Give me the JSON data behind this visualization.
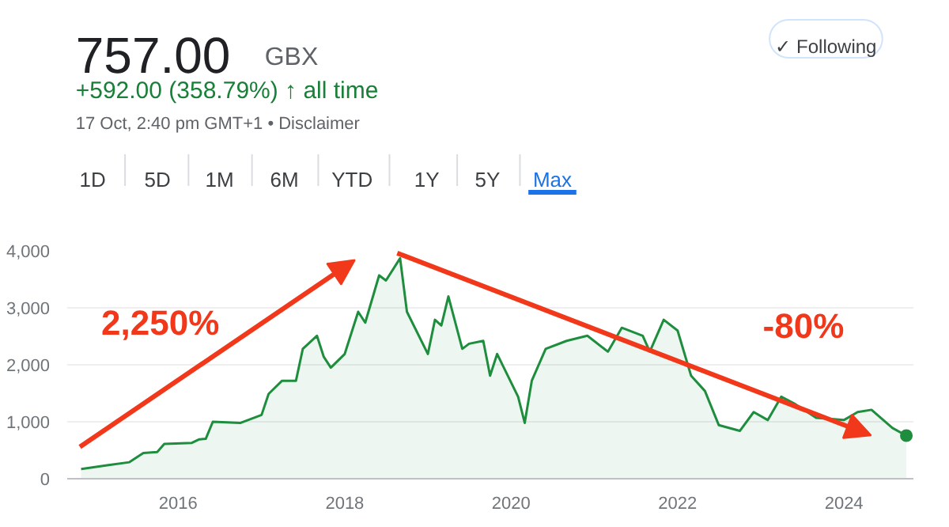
{
  "chart_data": {
    "type": "area",
    "title": "757.00",
    "subtitle": "+592.00 (358.79%) ↑ all time",
    "annotations": [
      "GBX",
      "17 Oct, 2:40 pm GMT+1 • Disclaimer",
      "1D",
      "5D",
      "1M",
      "6M",
      "YTD",
      "1Y",
      "5Y",
      "Max",
      "✓ Following",
      "2,250%",
      "-80%"
    ],
    "xlim": [
      "2014-09",
      "2024-11"
    ],
    "ylim": [
      0,
      4000
    ],
    "xticks": [
      {
        "value": "2016-01",
        "label": "2016"
      },
      {
        "value": "2018-01",
        "label": "2018"
      },
      {
        "value": "2020-01",
        "label": "2020"
      },
      {
        "value": "2022-01",
        "label": "2022"
      },
      {
        "value": "2024-01",
        "label": "2024"
      }
    ],
    "yticks": [
      {
        "value": 0,
        "label": "0"
      },
      {
        "value": 1000,
        "label": "1,000"
      },
      {
        "value": 2000,
        "label": "2,000"
      },
      {
        "value": 3000,
        "label": "3,000"
      },
      {
        "value": 4000,
        "label": "4,000"
      }
    ],
    "grid": "y",
    "series": [
      {
        "color": "#1e8e3e",
        "x": [
          "2014-11",
          "2015-03",
          "2015-06",
          "2015-08",
          "2015-10",
          "2015-11",
          "2016-03",
          "2016-04",
          "2016-05",
          "2016-06",
          "2016-10",
          "2017-01",
          "2017-02",
          "2017-04",
          "2017-06",
          "2017-07",
          "2017-09",
          "2017-10",
          "2017-11",
          "2018-01",
          "2018-03",
          "2018-04",
          "2018-06",
          "2018-07",
          "2018-09",
          "2018-10",
          "2019-01",
          "2019-02",
          "2019-03",
          "2019-04",
          "2019-06",
          "2019-07",
          "2019-09",
          "2019-10",
          "2019-11",
          "2020-02",
          "2020-03",
          "2020-04",
          "2020-06",
          "2020-09",
          "2020-12",
          "2021-03",
          "2021-05",
          "2021-08",
          "2021-09",
          "2021-11",
          "2022-01",
          "2022-03",
          "2022-05",
          "2022-07",
          "2022-10",
          "2022-12",
          "2023-02",
          "2023-04",
          "2023-06",
          "2023-09",
          "2024-01",
          "2024-03",
          "2024-05",
          "2024-08",
          "2024-10"
        ],
        "values": [
          170,
          240,
          290,
          450,
          470,
          610,
          630,
          690,
          700,
          1000,
          980,
          1120,
          1490,
          1720,
          1720,
          2280,
          2510,
          2140,
          1950,
          2190,
          2930,
          2740,
          3570,
          3480,
          3870,
          2930,
          2190,
          2790,
          2690,
          3200,
          2280,
          2370,
          2420,
          1810,
          2190,
          1440,
          980,
          1720,
          2280,
          2420,
          2510,
          2230,
          2650,
          2510,
          2230,
          2790,
          2600,
          1810,
          1540,
          940,
          840,
          1170,
          1030,
          1440,
          1310,
          1070,
          1030,
          1170,
          1210,
          890,
          757
        ]
      }
    ]
  }
}
